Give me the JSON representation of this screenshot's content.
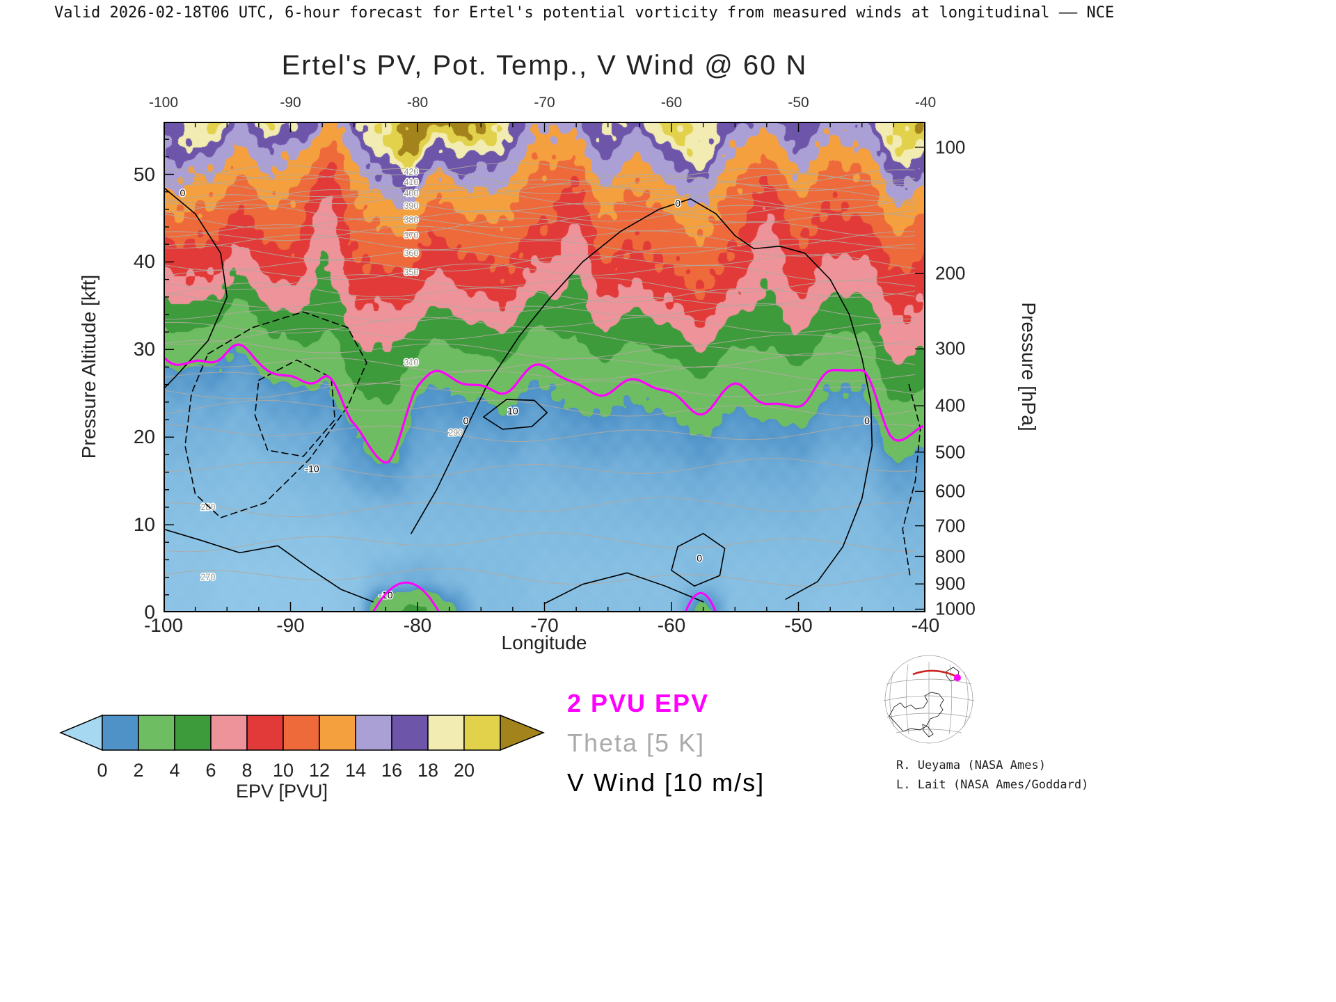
{
  "header": {
    "text": "Valid 2026-02-18T06 UTC, 6-hour forecast for Ertel's potential vorticity from measured winds at longitudinal —— NCE"
  },
  "title": "Ertel's PV, Pot. Temp., V Wind @ 60 N",
  "axes": {
    "x": {
      "label": "Longitude",
      "min": -100,
      "max": -40,
      "ticks": [
        -100,
        -90,
        -80,
        -70,
        -60,
        -50,
        -40
      ],
      "minor_step": 2.5
    },
    "y_left": {
      "label": "Pressure Altitude [kft]",
      "min": 0,
      "max": 56,
      "ticks": [
        0,
        10,
        20,
        30,
        40,
        50
      ],
      "minor_step": 2
    },
    "y_right": {
      "label": "Pressure [hPa]",
      "ticks": [
        {
          "p": 100,
          "kft": 53.1
        },
        {
          "p": 200,
          "kft": 38.66
        },
        {
          "p": 300,
          "kft": 30.07
        },
        {
          "p": 400,
          "kft": 23.58
        },
        {
          "p": 500,
          "kft": 18.29
        },
        {
          "p": 600,
          "kft": 13.8
        },
        {
          "p": 700,
          "kft": 9.88
        },
        {
          "p": 800,
          "kft": 6.39
        },
        {
          "p": 900,
          "kft": 3.24
        },
        {
          "p": 1000,
          "kft": 0.36
        }
      ]
    }
  },
  "colorbar": {
    "label": "EPV [PVU]",
    "ticks": [
      0,
      2,
      4,
      6,
      8,
      10,
      12,
      14,
      16,
      18,
      20
    ],
    "band_edges": [
      0,
      2,
      4,
      6,
      8,
      10,
      12,
      14,
      16,
      18,
      20,
      22
    ],
    "band_colors": [
      "#4e92c8",
      "#6fbd63",
      "#3d9b3c",
      "#ef939b",
      "#e23a38",
      "#ee6a3b",
      "#f5a03f",
      "#aaa0d6",
      "#6d55aa",
      "#f2ecb2",
      "#e2d24b"
    ],
    "under_color": "#a6d8f2",
    "over_color": "#a3831c"
  },
  "legend": [
    {
      "text": "2 PVU EPV",
      "color": "#ff00ff",
      "bold": true
    },
    {
      "text": "Theta [5 K]",
      "color": "#aaaaaa",
      "bold": false
    },
    {
      "text": "V Wind [10 m/s]",
      "color": "#000000",
      "bold": false
    }
  ],
  "credits": [
    "R. Ueyama (NASA Ames)",
    "L. Lait (NASA Ames/Goddard)"
  ],
  "chart_data": {
    "type": "heatmap",
    "x_lon": [
      -100,
      -97.5,
      -95,
      -92.5,
      -90,
      -87.5,
      -85,
      -82.5,
      -80,
      -77.5,
      -75,
      -72.5,
      -70,
      -67.5,
      -65,
      -62.5,
      -60,
      -57.5,
      -55,
      -52.5,
      -50,
      -47.5,
      -45,
      -42.5,
      -40
    ],
    "y_kft": [
      0,
      4,
      8,
      12,
      16,
      20,
      24,
      28,
      32,
      36,
      40,
      44,
      48,
      52,
      56
    ],
    "epv_grid": [
      [
        0.6,
        0.6,
        0.5,
        0.5,
        0.5,
        0.5,
        0.6,
        3.5,
        4.5,
        2.2,
        0.8,
        0.8,
        0.7,
        0.7,
        0.7,
        0.7,
        0.7,
        2.3,
        0.7,
        0.7,
        0.7,
        0.6,
        0.6,
        0.7,
        0.7
      ],
      [
        0.6,
        0.6,
        0.5,
        0.5,
        0.5,
        0.5,
        0.6,
        1.0,
        1.2,
        0.9,
        0.8,
        0.8,
        0.7,
        0.7,
        0.7,
        0.7,
        0.7,
        0.9,
        0.7,
        0.7,
        0.7,
        0.7,
        0.7,
        0.8,
        0.8
      ],
      [
        0.6,
        0.6,
        0.6,
        0.6,
        0.6,
        0.6,
        0.7,
        0.7,
        0.8,
        0.8,
        0.8,
        0.8,
        0.8,
        0.8,
        0.8,
        0.8,
        0.8,
        0.8,
        0.8,
        0.8,
        0.8,
        0.8,
        0.8,
        0.9,
        0.9
      ],
      [
        0.7,
        0.7,
        0.7,
        0.7,
        0.7,
        0.8,
        0.9,
        0.9,
        0.9,
        0.9,
        0.9,
        0.9,
        0.9,
        0.9,
        0.9,
        1.0,
        1.0,
        1.0,
        1.0,
        1.0,
        1.0,
        0.9,
        0.9,
        1.1,
        1.1
      ],
      [
        0.8,
        0.8,
        0.8,
        0.8,
        0.9,
        1.0,
        1.5,
        1.6,
        1.1,
        1.1,
        1.1,
        1.1,
        1.1,
        1.2,
        1.1,
        1.2,
        1.2,
        1.2,
        1.2,
        1.3,
        1.2,
        1.1,
        1.1,
        1.5,
        1.5
      ],
      [
        1.0,
        1.0,
        1.0,
        1.1,
        1.2,
        1.3,
        1.9,
        2.5,
        1.4,
        1.4,
        1.4,
        1.5,
        1.5,
        1.6,
        1.5,
        1.6,
        1.6,
        1.7,
        1.6,
        1.8,
        1.7,
        1.5,
        1.5,
        2.2,
        2.1
      ],
      [
        1.2,
        1.2,
        1.4,
        1.5,
        1.6,
        1.8,
        3.5,
        3.8,
        1.8,
        1.9,
        1.9,
        2.0,
        2.0,
        2.2,
        2.0,
        2.1,
        2.1,
        2.3,
        2.1,
        2.6,
        2.3,
        2.0,
        2.0,
        3.5,
        3.3
      ],
      [
        1.6,
        1.7,
        2.0,
        2.2,
        2.3,
        2.6,
        5.0,
        5.0,
        2.4,
        2.8,
        2.8,
        3.0,
        3.0,
        3.2,
        3.0,
        3.2,
        3.2,
        3.4,
        3.2,
        3.8,
        3.5,
        3.0,
        3.0,
        5.0,
        4.8
      ],
      [
        2.6,
        2.8,
        3.5,
        4.0,
        4.2,
        4.5,
        6.5,
        6.0,
        4.5,
        5.0,
        5.0,
        5.2,
        5.2,
        4.5,
        5.0,
        5.5,
        5.5,
        5.8,
        5.5,
        5.0,
        5.5,
        5.0,
        5.0,
        6.5,
        6.5
      ],
      [
        5.0,
        5.5,
        6.0,
        6.5,
        7.0,
        5.5,
        8.5,
        7.5,
        7.0,
        7.5,
        7.5,
        7.8,
        7.8,
        5.5,
        7.5,
        8.0,
        8.0,
        8.0,
        8.0,
        6.0,
        7.5,
        7.0,
        7.0,
        8.0,
        8.0
      ],
      [
        7.5,
        8.0,
        8.5,
        9.0,
        9.5,
        6.0,
        10.0,
        9.5,
        9.0,
        9.5,
        9.5,
        9.8,
        9.8,
        6.5,
        9.5,
        10.0,
        10.0,
        10.0,
        9.8,
        6.5,
        9.0,
        8.5,
        9.0,
        9.5,
        9.5
      ],
      [
        9.5,
        10.0,
        10.5,
        11.0,
        11.0,
        7.0,
        11.0,
        11.0,
        10.5,
        11.0,
        11.0,
        11.0,
        11.0,
        8.0,
        11.0,
        11.0,
        11.0,
        11.0,
        10.8,
        8.0,
        10.0,
        10.0,
        10.5,
        11.0,
        11.0
      ],
      [
        12.0,
        12.0,
        12.5,
        13.0,
        12.0,
        9.0,
        12.5,
        13.0,
        13.0,
        13.5,
        13.0,
        12.5,
        12.0,
        10.0,
        12.5,
        12.5,
        13.0,
        12.5,
        12.0,
        10.0,
        11.5,
        11.5,
        12.0,
        13.0,
        13.0
      ],
      [
        15.0,
        14.0,
        15.0,
        16.0,
        14.0,
        12.0,
        15.0,
        16.0,
        17.0,
        18.0,
        16.0,
        15.0,
        14.0,
        13.0,
        15.0,
        15.0,
        16.0,
        15.0,
        14.0,
        13.0,
        14.0,
        14.0,
        15.0,
        16.0,
        17.0
      ],
      [
        16.0,
        19.0,
        21.0,
        21.0,
        18.0,
        16.0,
        18.0,
        20.0,
        24.0,
        24.0,
        22.0,
        18.0,
        16.0,
        16.0,
        18.0,
        19.0,
        21.0,
        19.0,
        17.0,
        16.0,
        17.0,
        17.0,
        18.0,
        20.0,
        22.0
      ]
    ],
    "tropopause_2pvu_kft": [
      30.5,
      30,
      28.5,
      27.5,
      27,
      26,
      21,
      18,
      27,
      26.5,
      26.5,
      26,
      26,
      25.5,
      26,
      25.5,
      25.5,
      25,
      25.5,
      23,
      24.5,
      26,
      26,
      21,
      21.5
    ],
    "lowlevel_2pvu_patches": [
      {
        "lon_start": -83.5,
        "lon_end": -78.3,
        "peak_kft": 3.4
      },
      {
        "lon_start": -58.9,
        "lon_end": -56.5,
        "peak_kft": 2.2
      }
    ],
    "theta_levels": [
      {
        "theta": 270,
        "kft": 4.0,
        "label_lon": -96.5
      },
      {
        "theta": 275,
        "kft": 8.0,
        "label_lon": null
      },
      {
        "theta": 280,
        "kft": 12.0,
        "label_lon": -96.5
      },
      {
        "theta": 285,
        "kft": 16.5,
        "label_lon": null
      },
      {
        "theta": 290,
        "kft": 20.5,
        "label_lon": -77.0
      },
      {
        "theta": 295,
        "kft": 23.3,
        "label_lon": null
      },
      {
        "theta": 300,
        "kft": 25.4,
        "label_lon": null
      },
      {
        "theta": 305,
        "kft": 27.0,
        "label_lon": null
      },
      {
        "theta": 310,
        "kft": 28.5,
        "label_lon": -80.5
      },
      {
        "theta": 315,
        "kft": 30.0,
        "label_lon": null
      },
      {
        "theta": 320,
        "kft": 31.4,
        "label_lon": null
      },
      {
        "theta": 325,
        "kft": 32.8,
        "label_lon": null
      },
      {
        "theta": 330,
        "kft": 34.2,
        "label_lon": null
      },
      {
        "theta": 335,
        "kft": 35.4,
        "label_lon": null
      },
      {
        "theta": 340,
        "kft": 36.5,
        "label_lon": null
      },
      {
        "theta": 345,
        "kft": 37.5,
        "label_lon": null
      },
      {
        "theta": 350,
        "kft": 38.8,
        "label_lon": -80.5
      },
      {
        "theta": 355,
        "kft": 39.9,
        "label_lon": null
      },
      {
        "theta": 360,
        "kft": 41.0,
        "label_lon": -80.5
      },
      {
        "theta": 365,
        "kft": 42.0,
        "label_lon": null
      },
      {
        "theta": 370,
        "kft": 43.0,
        "label_lon": -80.5
      },
      {
        "theta": 375,
        "kft": 43.9,
        "label_lon": null
      },
      {
        "theta": 380,
        "kft": 44.8,
        "label_lon": -80.5
      },
      {
        "theta": 385,
        "kft": 45.6,
        "label_lon": null
      },
      {
        "theta": 390,
        "kft": 46.4,
        "label_lon": -80.5
      },
      {
        "theta": 395,
        "kft": 47.1,
        "label_lon": null
      },
      {
        "theta": 400,
        "kft": 47.8,
        "label_lon": -80.5
      },
      {
        "theta": 405,
        "kft": 48.5,
        "label_lon": null
      },
      {
        "theta": 410,
        "kft": 49.1,
        "label_lon": -80.5
      },
      {
        "theta": 415,
        "kft": 49.7,
        "label_lon": null
      },
      {
        "theta": 420,
        "kft": 50.3,
        "label_lon": -80.5
      }
    ],
    "wind_contours": [
      {
        "style": "solid",
        "points": [
          [
            -100,
            48.5
          ],
          [
            -97.5,
            45.5
          ],
          [
            -95.5,
            41
          ],
          [
            -95,
            36
          ],
          [
            -96.5,
            31
          ],
          [
            -99,
            27
          ],
          [
            -100,
            25.5
          ]
        ]
      },
      {
        "style": "solid",
        "points": [
          [
            -100,
            9.5
          ],
          [
            -97,
            8.2
          ],
          [
            -94,
            6.8
          ],
          [
            -91,
            7.6
          ],
          [
            -88.5,
            5
          ],
          [
            -86,
            2.6
          ],
          [
            -83.5,
            1.2
          ]
        ]
      },
      {
        "style": "dashed",
        "points": [
          [
            -96.5,
            29.5
          ],
          [
            -93,
            32.5
          ],
          [
            -89,
            34.3
          ],
          [
            -85.5,
            32.5
          ],
          [
            -84,
            28.5
          ],
          [
            -85.5,
            23.5
          ],
          [
            -88.5,
            17.5
          ],
          [
            -92,
            12.5
          ],
          [
            -95.5,
            10.8
          ],
          [
            -97.5,
            13.5
          ],
          [
            -98.3,
            19
          ],
          [
            -97.8,
            25
          ],
          [
            -96.5,
            29.5
          ]
        ]
      },
      {
        "style": "dashed",
        "points": [
          [
            -92.5,
            26.5
          ],
          [
            -89.5,
            28.8
          ],
          [
            -86.8,
            26.8
          ],
          [
            -86.5,
            22
          ],
          [
            -89,
            17.8
          ],
          [
            -91.8,
            18.5
          ],
          [
            -92.8,
            22.5
          ],
          [
            -92.5,
            26.5
          ]
        ]
      },
      {
        "style": "solid",
        "points": [
          [
            -80.5,
            9
          ],
          [
            -78.5,
            14
          ],
          [
            -76.5,
            20
          ],
          [
            -74.5,
            26
          ],
          [
            -72,
            31.5
          ],
          [
            -69.5,
            36
          ],
          [
            -67,
            40
          ],
          [
            -64,
            43.5
          ],
          [
            -61,
            46
          ],
          [
            -58.5,
            47.2
          ],
          [
            -56.5,
            45.5
          ],
          [
            -55,
            43
          ],
          [
            -53.5,
            41.5
          ],
          [
            -51.5,
            41.8
          ],
          [
            -49.5,
            41
          ],
          [
            -47.5,
            38
          ],
          [
            -46,
            34
          ],
          [
            -45,
            29
          ],
          [
            -44.3,
            24
          ],
          [
            -44.2,
            19
          ],
          [
            -45,
            13
          ],
          [
            -46.5,
            7.5
          ],
          [
            -48.5,
            3.5
          ],
          [
            -51,
            1.5
          ]
        ]
      },
      {
        "style": "solid",
        "points": [
          [
            -74.8,
            22.3
          ],
          [
            -73,
            24.3
          ],
          [
            -70.8,
            24.2
          ],
          [
            -69.8,
            22.8
          ],
          [
            -71,
            21.2
          ],
          [
            -73.3,
            20.9
          ],
          [
            -74.8,
            22.3
          ]
        ]
      },
      {
        "style": "solid",
        "points": [
          [
            -59.5,
            7.5
          ],
          [
            -57.5,
            9
          ],
          [
            -55.8,
            7.3
          ],
          [
            -56.2,
            4.2
          ],
          [
            -58.2,
            3
          ],
          [
            -60,
            4.8
          ],
          [
            -59.5,
            7.5
          ]
        ]
      },
      {
        "style": "dashed",
        "points": [
          [
            -41.3,
            26
          ],
          [
            -40.4,
            21
          ],
          [
            -40.8,
            15
          ],
          [
            -41.8,
            9.5
          ],
          [
            -41.2,
            4
          ]
        ]
      },
      {
        "style": "solid",
        "points": [
          [
            -70,
            1
          ],
          [
            -67,
            3.2
          ],
          [
            -63.5,
            4.5
          ],
          [
            -60.5,
            3
          ],
          [
            -57.5,
            1.2
          ]
        ]
      }
    ],
    "wind_labels": [
      {
        "text": "0",
        "lon": -98.5,
        "kft": 47.5
      },
      {
        "text": "-10",
        "lon": -88.3,
        "kft": 16
      },
      {
        "text": "0",
        "lon": -76.2,
        "kft": 21.5
      },
      {
        "text": "10",
        "lon": -72.5,
        "kft": 22.6
      },
      {
        "text": "0",
        "lon": -59.5,
        "kft": 46.3
      },
      {
        "text": "0",
        "lon": -44.6,
        "kft": 21.5
      },
      {
        "text": "0",
        "lon": -57.8,
        "kft": 5.8
      },
      {
        "text": "-10",
        "lon": -82.5,
        "kft": 1.6
      }
    ],
    "line_colors": {
      "tropopause": "#ff00ff",
      "theta": "#b3a89d",
      "theta_label": "#8f8f85",
      "wind": "#000000"
    }
  }
}
